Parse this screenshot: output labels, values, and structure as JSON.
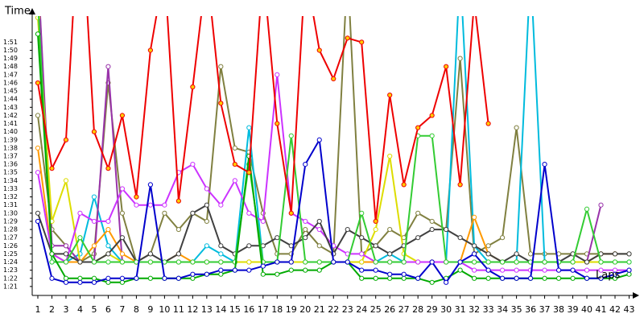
{
  "chart_data": {
    "type": "line",
    "y_label": "Time",
    "x_label": "Laps",
    "x": [
      1,
      2,
      3,
      4,
      5,
      6,
      7,
      8,
      9,
      10,
      11,
      12,
      13,
      14,
      15,
      16,
      17,
      18,
      19,
      20,
      21,
      22,
      23,
      24,
      25,
      26,
      27,
      28,
      29,
      30,
      31,
      32,
      33,
      34,
      35,
      36,
      37,
      38,
      39,
      40,
      41,
      42,
      43
    ],
    "xlim": [
      0.6,
      43.2
    ],
    "xticks": [
      1,
      2,
      3,
      4,
      5,
      6,
      7,
      8,
      9,
      10,
      11,
      12,
      13,
      14,
      15,
      16,
      17,
      18,
      19,
      20,
      21,
      22,
      23,
      24,
      25,
      26,
      27,
      28,
      29,
      30,
      31,
      32,
      33,
      34,
      35,
      36,
      37,
      38,
      39,
      40,
      41,
      42,
      43
    ],
    "ylim": [
      80,
      114
    ],
    "yticks": [
      {
        "value": 81,
        "label": "1:21"
      },
      {
        "value": 82,
        "label": "1:22"
      },
      {
        "value": 83,
        "label": "1:23"
      },
      {
        "value": 84,
        "label": "1:24"
      },
      {
        "value": 85,
        "label": "1:25"
      },
      {
        "value": 86,
        "label": "1:26"
      },
      {
        "value": 87,
        "label": "1:27"
      },
      {
        "value": 88,
        "label": "1:28"
      },
      {
        "value": 89,
        "label": "1:29"
      },
      {
        "value": 90,
        "label": "1:30"
      },
      {
        "value": 91,
        "label": "1:31"
      },
      {
        "value": 92,
        "label": "1:32"
      },
      {
        "value": 93,
        "label": "1:33"
      },
      {
        "value": 94,
        "label": "1:34"
      },
      {
        "value": 95,
        "label": "1:35"
      },
      {
        "value": 96,
        "label": "1:36"
      },
      {
        "value": 97,
        "label": "1:37"
      },
      {
        "value": 98,
        "label": "1:38"
      },
      {
        "value": 99,
        "label": "1:39"
      },
      {
        "value": 100,
        "label": "1:40"
      },
      {
        "value": 101,
        "label": "1:41"
      },
      {
        "value": 102,
        "label": "1:42"
      },
      {
        "value": 103,
        "label": "1:43"
      },
      {
        "value": 104,
        "label": "1:44"
      },
      {
        "value": 105,
        "label": "1:45"
      },
      {
        "value": 106,
        "label": "1:46"
      },
      {
        "value": 107,
        "label": "1:47"
      },
      {
        "value": 108,
        "label": "1:48"
      },
      {
        "value": 109,
        "label": "1:49"
      },
      {
        "value": 110,
        "label": "1:50"
      },
      {
        "value": 111,
        "label": "1:51"
      }
    ],
    "grid": false,
    "series": [
      {
        "color": "#808040",
        "values": [
          102,
          88,
          86,
          84,
          85,
          106,
          90,
          84,
          85,
          90,
          88,
          90,
          89,
          108,
          98,
          97.5,
          90,
          85,
          85,
          88,
          86,
          85,
          120,
          85,
          86,
          88,
          87,
          90,
          89,
          88,
          109,
          85,
          86,
          87,
          100.5,
          85,
          85,
          85,
          85,
          85,
          85,
          85,
          85
        ]
      },
      {
        "color": "#00bbdd",
        "values": [
          120,
          84,
          84,
          85,
          92,
          86,
          84,
          84,
          84,
          84,
          84,
          84,
          86,
          85,
          84,
          100.5,
          84,
          84,
          84,
          84,
          84,
          84,
          84,
          84,
          84,
          85,
          84,
          84,
          84,
          84,
          120,
          86,
          84,
          84,
          84,
          120,
          84,
          84,
          84,
          84,
          84,
          84,
          84
        ]
      },
      {
        "color": "#9933aa",
        "values": [
          120,
          86,
          86,
          84,
          84,
          108,
          84,
          84,
          84,
          84,
          84,
          84,
          84,
          84,
          84,
          84,
          84,
          84,
          84,
          84,
          84,
          84,
          84,
          84,
          84,
          84,
          84,
          84,
          84,
          84,
          84,
          84,
          84,
          84,
          84,
          84,
          84,
          84,
          84,
          84,
          91,
          null,
          null
        ]
      },
      {
        "color": "#ff9900",
        "values": [
          98,
          85,
          84,
          84,
          86,
          88,
          85,
          84,
          84,
          84,
          85,
          84,
          84,
          84,
          84,
          84,
          84,
          84,
          84,
          84,
          84,
          84,
          84,
          84,
          84,
          84,
          84,
          84,
          84,
          84,
          84,
          89.5,
          85,
          84,
          84,
          84,
          84,
          84,
          84,
          84,
          85,
          85,
          null
        ]
      },
      {
        "color": "#dddd00",
        "values": [
          114,
          89,
          94,
          84,
          84,
          85,
          84,
          84,
          84,
          84,
          84,
          84,
          84,
          84,
          84,
          84,
          84,
          84,
          84,
          84,
          84,
          84,
          84,
          84,
          88,
          97,
          85,
          84,
          84,
          84,
          84,
          84,
          84,
          84,
          84,
          84,
          84,
          84,
          84,
          84,
          84,
          84,
          null
        ]
      },
      {
        "color": "#cc33ff",
        "values": [
          95,
          85,
          84,
          90,
          89,
          89,
          93,
          91,
          91,
          91,
          95,
          96,
          93,
          91,
          94,
          90,
          89,
          107,
          90,
          89,
          88,
          86,
          85,
          85,
          84,
          84,
          84,
          84,
          84,
          84,
          84,
          83,
          83,
          83,
          83,
          83,
          83,
          83,
          83,
          83,
          83,
          83,
          83
        ]
      },
      {
        "color": "#404040",
        "values": [
          90,
          85,
          85,
          84,
          84,
          85,
          87,
          84,
          85,
          84,
          85,
          90,
          91,
          86,
          85,
          86,
          86,
          87,
          86,
          87,
          89,
          85,
          88,
          87,
          86,
          85,
          86,
          87,
          88,
          88,
          87,
          86,
          85,
          84,
          85,
          84,
          84,
          84,
          85,
          84,
          85,
          85,
          85
        ]
      },
      {
        "color": "#33cc33",
        "values": [
          116,
          84,
          84,
          87,
          84,
          84,
          84,
          84,
          84,
          84,
          84,
          84,
          84,
          84,
          84,
          96,
          84,
          84,
          99.5,
          84,
          84,
          84,
          84,
          90,
          84,
          84,
          84,
          99.5,
          99.5,
          84,
          84,
          84,
          84,
          84,
          84,
          84,
          84,
          84,
          84,
          90.5,
          84,
          84,
          84
        ]
      },
      {
        "color": "#00aa00",
        "values": [
          112,
          85,
          82,
          82,
          82,
          81.5,
          81.5,
          82,
          82,
          82,
          82,
          82,
          82.5,
          82.5,
          83,
          97,
          82.5,
          82.5,
          83,
          83,
          83,
          84,
          84,
          82,
          82,
          82,
          82,
          82,
          81.5,
          82,
          83,
          82,
          82,
          82,
          82,
          82,
          82,
          82,
          82,
          82,
          82,
          82,
          82.5
        ]
      },
      {
        "color": "#0000cc",
        "values": [
          89,
          82,
          81.5,
          81.5,
          81.5,
          82,
          82,
          82,
          93.5,
          82,
          82,
          82.5,
          82.5,
          83,
          83,
          83,
          83.5,
          84,
          84,
          96,
          99,
          84,
          84,
          83,
          83,
          82.5,
          82.5,
          82,
          84,
          81.5,
          84,
          85,
          83,
          82,
          82,
          82,
          96,
          83,
          83,
          82,
          82,
          82.5,
          83
        ]
      },
      {
        "color": "#ee0000",
        "marker_fill": "#ffcc00",
        "values": [
          106,
          95.5,
          99,
          130,
          100,
          95.5,
          102,
          92,
          110,
          120,
          91.5,
          105.5,
          120,
          103.5,
          96,
          95,
          120,
          101,
          90,
          120,
          110,
          106.5,
          111.5,
          111,
          89,
          104.5,
          93.5,
          100.5,
          102,
          108,
          93.5,
          116,
          101,
          null,
          null,
          null,
          null,
          null,
          null,
          null,
          null,
          null,
          null
        ]
      }
    ]
  }
}
